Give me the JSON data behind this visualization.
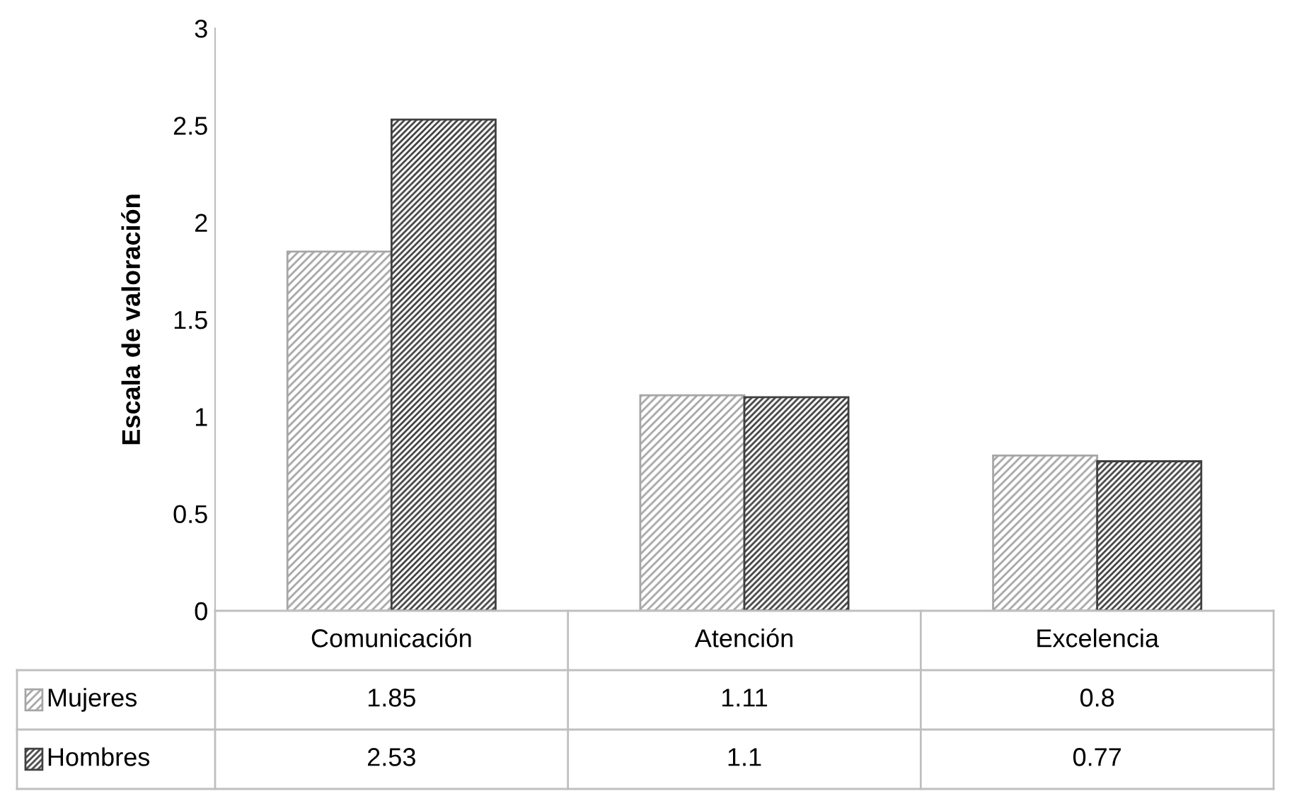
{
  "chart_data": {
    "type": "bar",
    "ylabel": "Escala de valoración",
    "categories": [
      "Comunicación",
      "Atención",
      "Excelencia"
    ],
    "series": [
      {
        "name": "Mujeres",
        "color": "#a6a6a6",
        "values": [
          1.85,
          1.11,
          0.8
        ]
      },
      {
        "name": "Hombres",
        "color": "#404040",
        "values": [
          2.53,
          1.1,
          0.77
        ]
      }
    ],
    "ylim": [
      0,
      3
    ],
    "yticks": [
      0,
      0.5,
      1,
      1.5,
      2,
      2.5,
      3
    ],
    "grid": false,
    "data_labels": true,
    "legend": "bottom left"
  }
}
